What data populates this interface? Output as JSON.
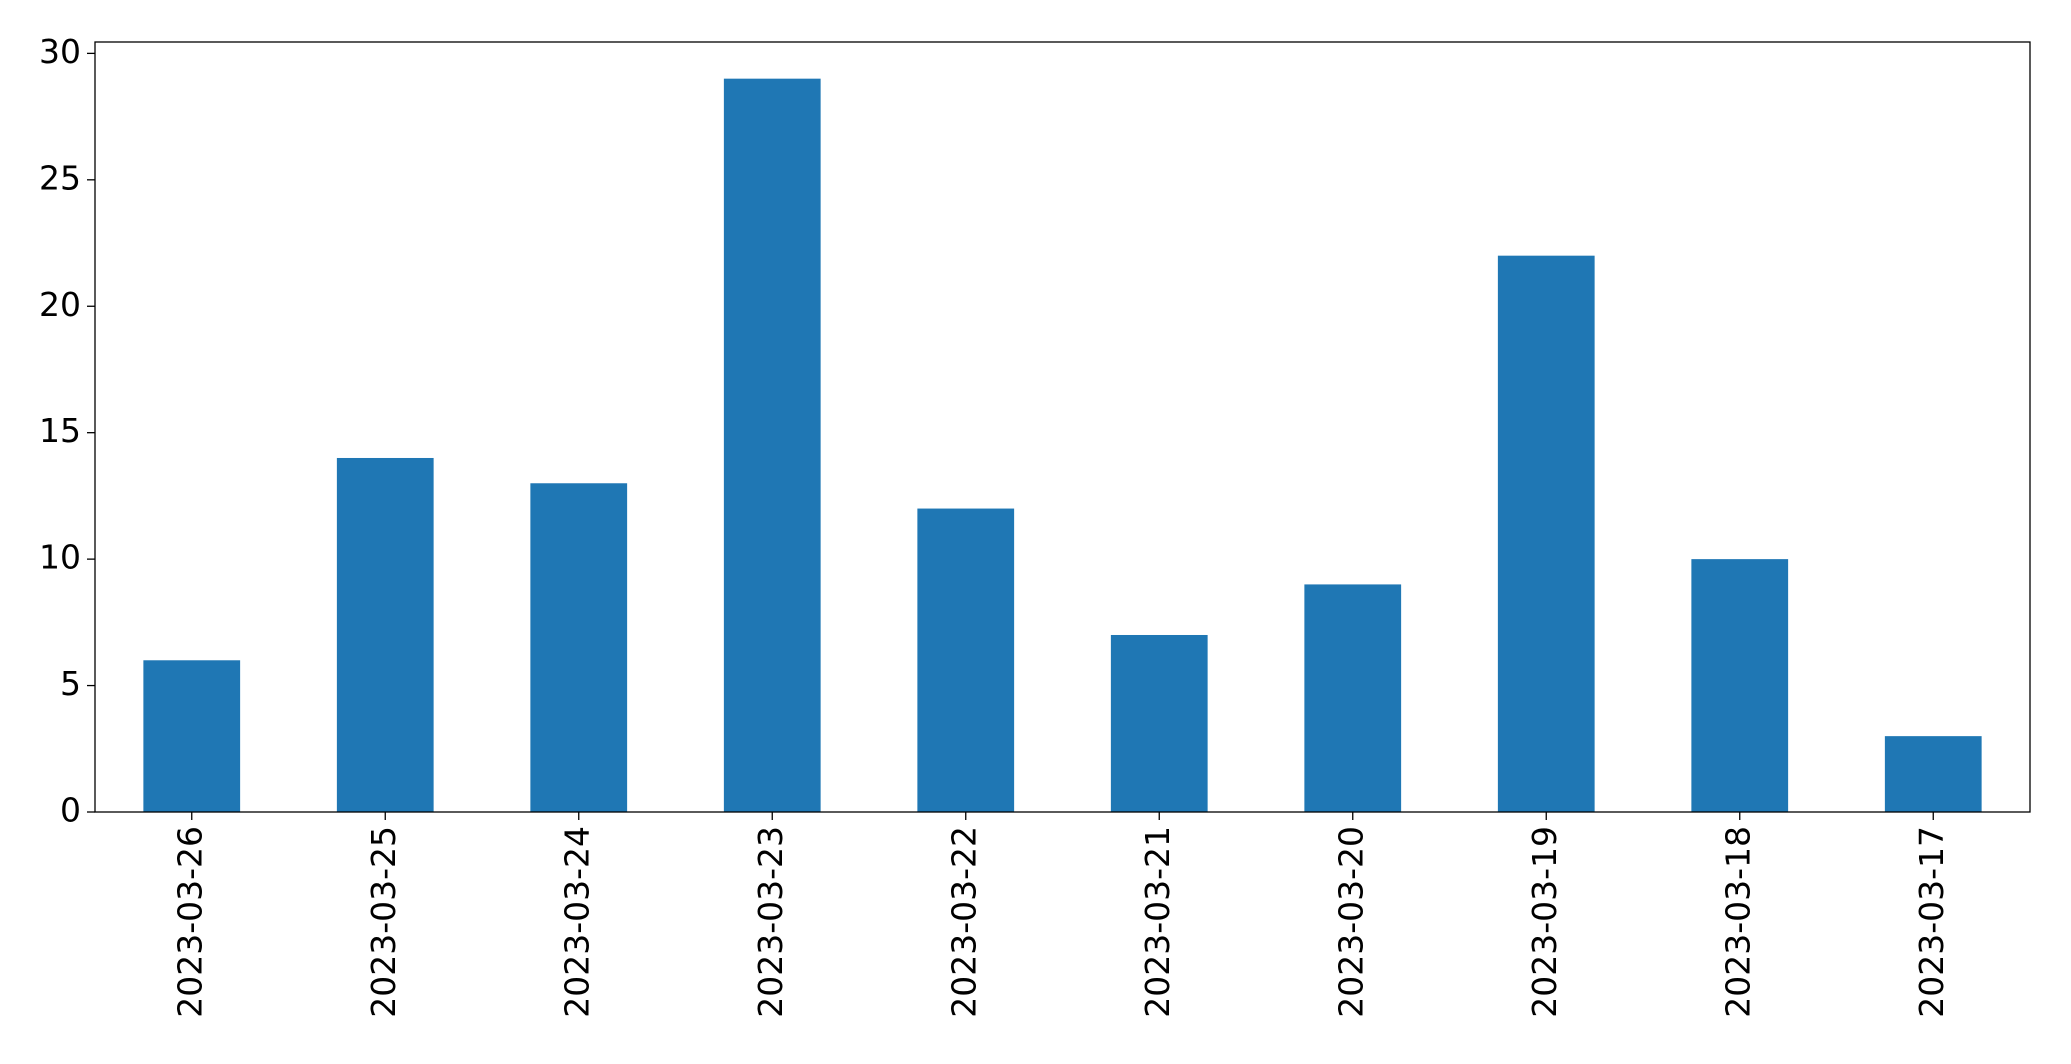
{
  "chart_data": {
    "type": "bar",
    "categories": [
      "2023-03-26",
      "2023-03-25",
      "2023-03-24",
      "2023-03-23",
      "2023-03-22",
      "2023-03-21",
      "2023-03-20",
      "2023-03-19",
      "2023-03-18",
      "2023-03-17"
    ],
    "values": [
      6,
      14,
      13,
      29,
      12,
      7,
      9,
      22,
      10,
      3
    ],
    "color": "#1f77b4",
    "ylim": [
      0,
      30.45
    ],
    "yticks": [
      0,
      5,
      10,
      15,
      20,
      25,
      30
    ],
    "grid": false
  }
}
